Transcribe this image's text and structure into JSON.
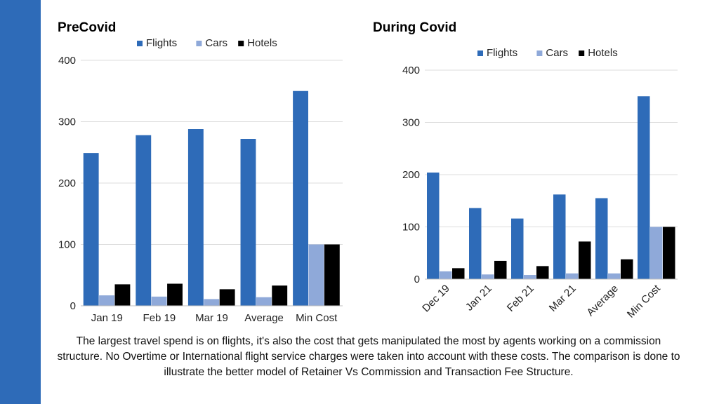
{
  "colors": {
    "sidebar": "#2e6bb8",
    "flights": "#2e6bb8",
    "cars": "#8fa9d9",
    "hotels": "#000000",
    "grid": "#dcdcdc",
    "axis": "#bfbfbf"
  },
  "chart_data": [
    {
      "type": "bar",
      "title": "PreCovid",
      "categories": [
        "Jan 19",
        "Feb 19",
        "Mar 19",
        "Average",
        "Min Cost"
      ],
      "series": [
        {
          "name": "Flights",
          "values": [
            249,
            278,
            288,
            272,
            350
          ]
        },
        {
          "name": "Cars",
          "values": [
            17,
            15,
            11,
            14,
            100
          ]
        },
        {
          "name": "Hotels",
          "values": [
            35,
            36,
            27,
            33,
            100
          ]
        }
      ],
      "ylim": [
        0,
        400
      ],
      "yticks": [
        0,
        100,
        200,
        300,
        400
      ],
      "legend": "top",
      "grid": true,
      "rotated_labels": false
    },
    {
      "type": "bar",
      "title": "During Covid",
      "categories": [
        "Dec 19",
        "Jan 21",
        "Feb 21",
        "Mar 21",
        "Average",
        "Min Cost"
      ],
      "series": [
        {
          "name": "Flights",
          "values": [
            204,
            136,
            116,
            162,
            155,
            350
          ]
        },
        {
          "name": "Cars",
          "values": [
            15,
            9,
            8,
            11,
            11,
            100
          ]
        },
        {
          "name": "Hotels",
          "values": [
            21,
            35,
            25,
            72,
            38,
            100
          ]
        }
      ],
      "ylim": [
        0,
        400
      ],
      "yticks": [
        0,
        100,
        200,
        300,
        400
      ],
      "legend": "top",
      "grid": true,
      "rotated_labels": true
    }
  ],
  "caption": "The largest travel spend is on flights, it's also the cost that gets manipulated the most by agents working on a commission structure.  No Overtime or International flight service charges were taken into account with these costs.  The comparison is done to illustrate the better model of Retainer Vs Commission and Transaction Fee Structure."
}
